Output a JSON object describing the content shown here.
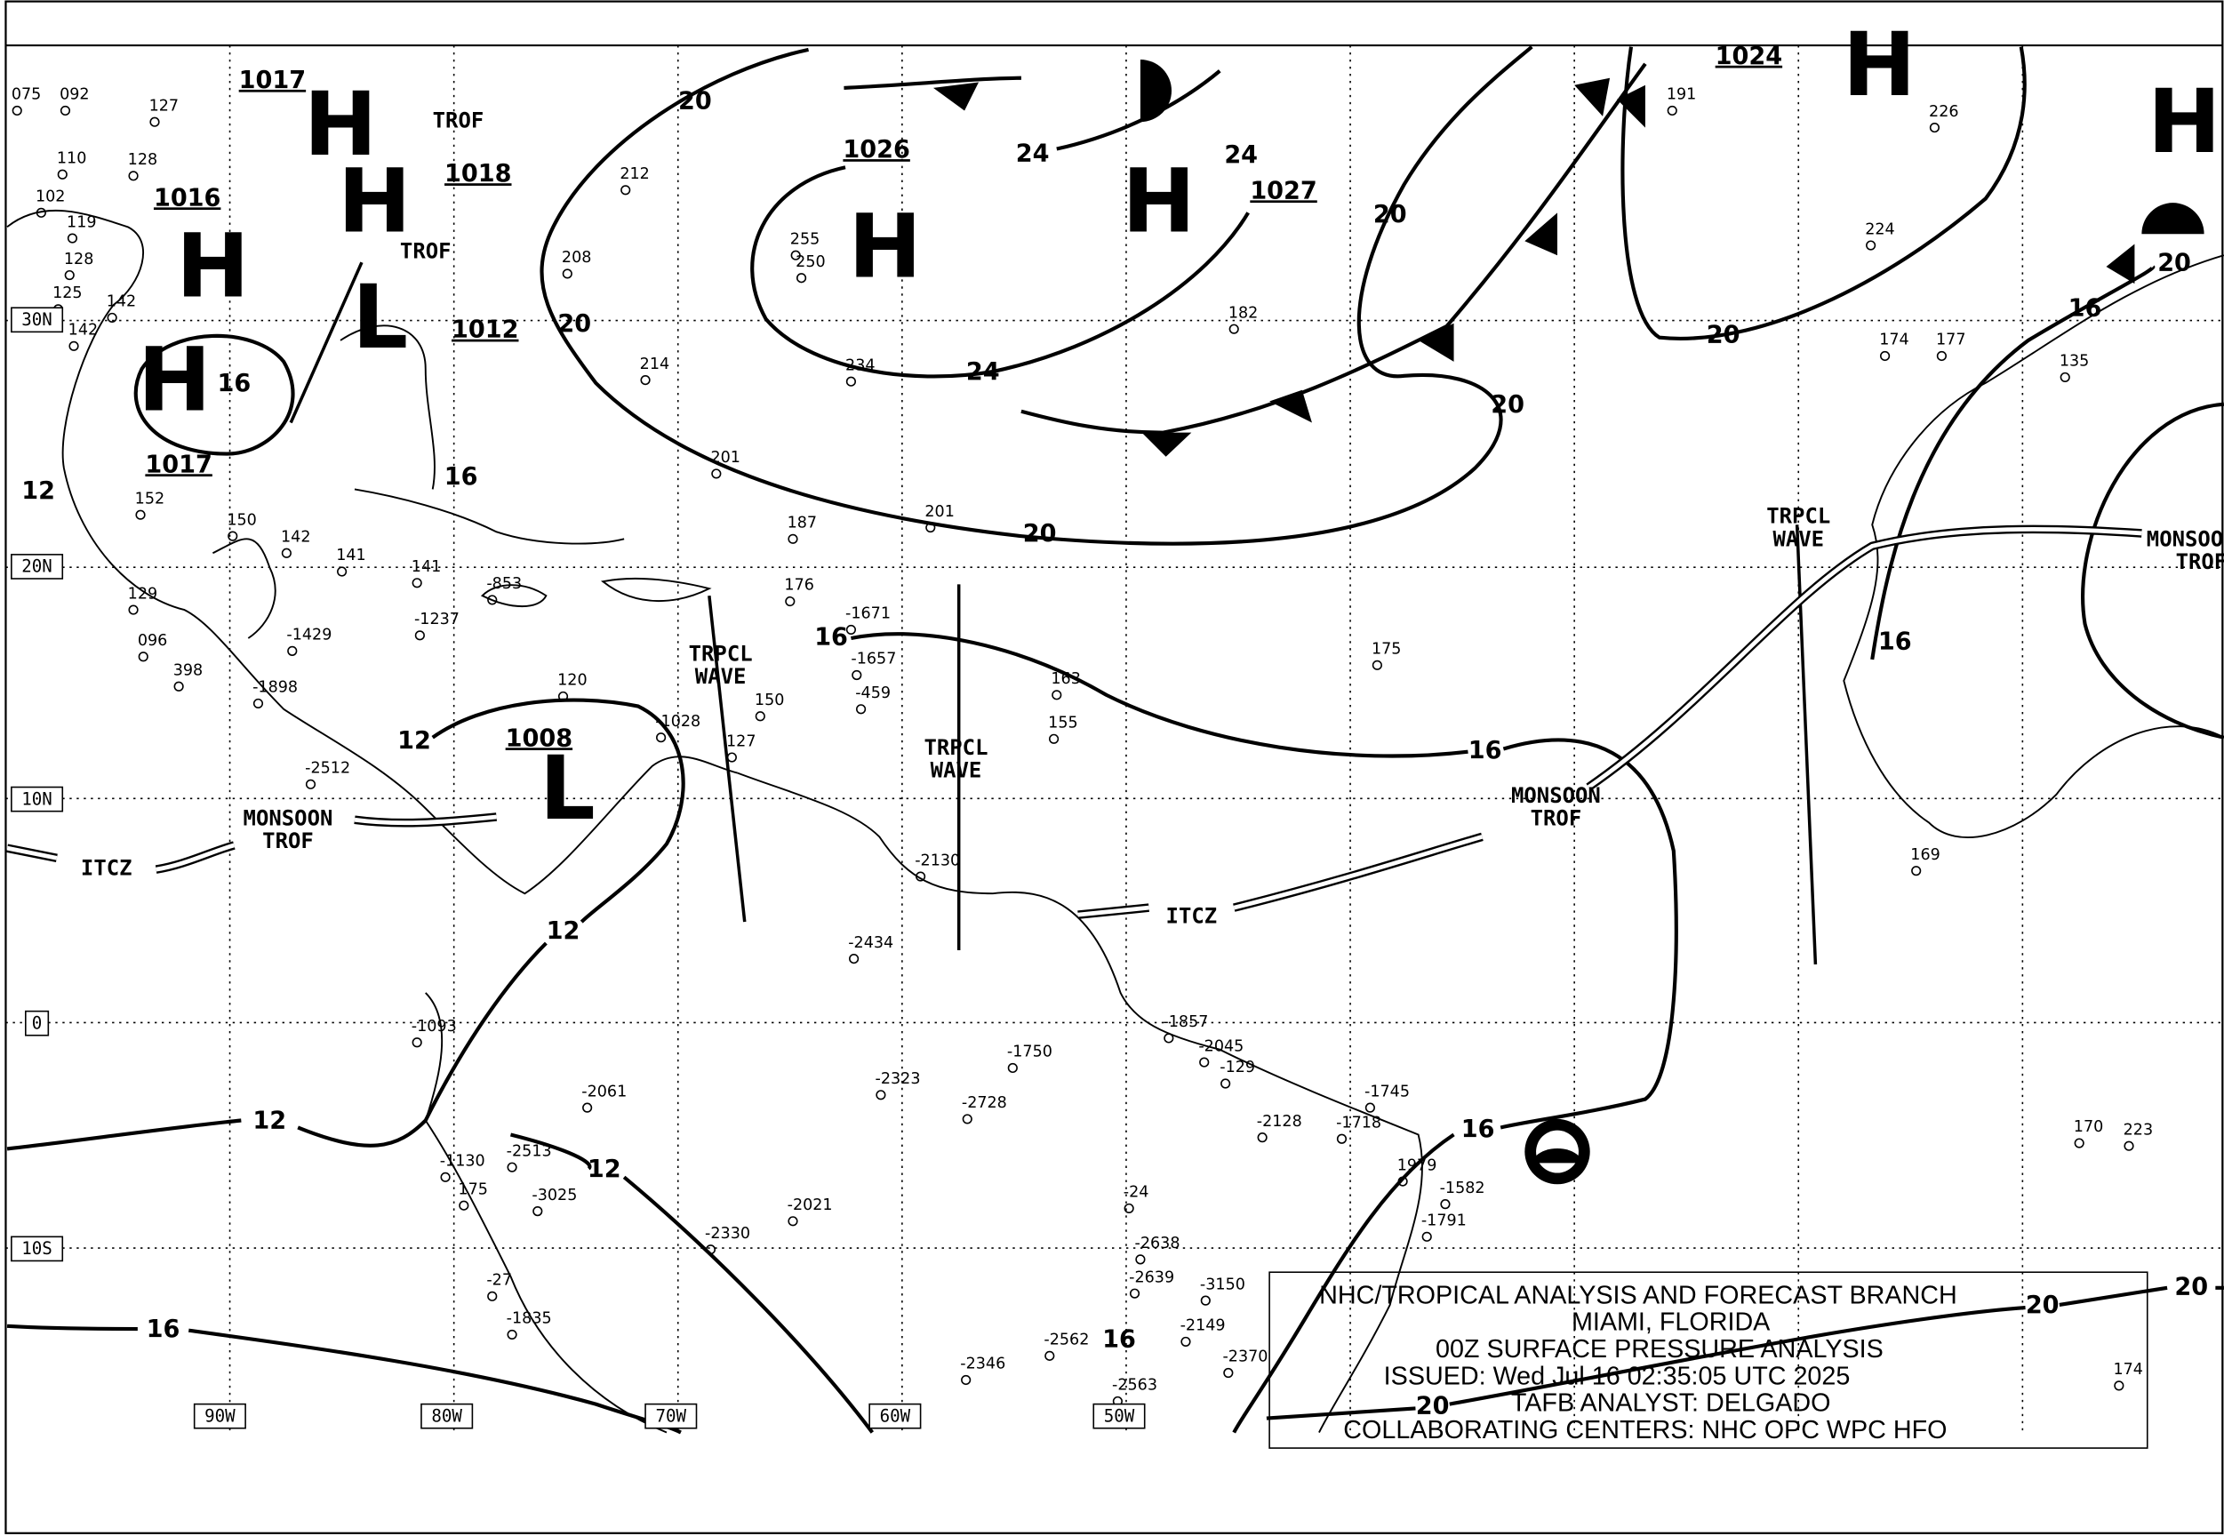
{
  "info_box": {
    "line1": "NHC/TROPICAL ANALYSIS AND FORECAST BRANCH",
    "line2": "MIAMI, FLORIDA",
    "line3": "00Z SURFACE PRESSURE ANALYSIS",
    "line4": "ISSUED: Wed Jul 16 02:35:05 UTC 2025",
    "line5": "TAFB ANALYST: DELGADO",
    "line6": "COLLABORATING CENTERS: NHC OPC WPC HFO"
  },
  "grid_labels": {
    "lat": [
      "30N",
      "20N",
      "10N",
      "0",
      "10S"
    ],
    "lon": [
      "90W",
      "80W",
      "70W",
      "60W",
      "50W"
    ]
  },
  "pressure_centers": [
    {
      "type": "H",
      "pressure": "1017"
    },
    {
      "type": "H",
      "pressure": "1018"
    },
    {
      "type": "H",
      "pressure": "1016"
    },
    {
      "type": "H",
      "pressure": "1017"
    },
    {
      "type": "L",
      "pressure": "1012"
    },
    {
      "type": "H",
      "pressure": "1026"
    },
    {
      "type": "H",
      "pressure": "1027"
    },
    {
      "type": "H",
      "pressure": "1024"
    },
    {
      "type": "L",
      "pressure": "1008"
    },
    {
      "type": "H",
      "pressure": ""
    }
  ],
  "isobar_labels": [
    "20",
    "20",
    "20",
    "20",
    "20",
    "24",
    "24",
    "24",
    "20",
    "20",
    "16",
    "16",
    "16",
    "16",
    "16",
    "16",
    "16",
    "12",
    "12",
    "12",
    "12",
    "12",
    "16",
    "20",
    "20",
    "20",
    "16"
  ],
  "features": {
    "trof": "TROF",
    "trpcl_wave_1": "TRPCL",
    "trpcl_wave_2": "WAVE",
    "monsoon": "MONSOON",
    "monsoon_trof": "TROF",
    "itcz": "ITCZ"
  },
  "stations": [
    "075",
    "092",
    "127",
    "110",
    "128",
    "102",
    "119",
    "128",
    "125",
    "142",
    "142",
    "152",
    "150",
    "141",
    "129",
    "096",
    "398",
    "212",
    "208",
    "214",
    "201",
    "255",
    "250",
    "234",
    "182",
    "187",
    "201",
    "191",
    "226",
    "224",
    "174",
    "177",
    "135",
    "175",
    "163",
    "155",
    "150",
    "120",
    "127",
    "-1028",
    "-2130",
    "-2434",
    "-1750",
    "-2323",
    "-2728",
    "-2128",
    "1979",
    "-1582",
    "-1791",
    "-2638",
    "-2639",
    "-3150",
    "-2346",
    "-2021",
    "-2330",
    "-2061",
    "-1093",
    "-1130",
    "175",
    "170",
    "223",
    "174",
    "169",
    "176",
    "-1671",
    "-1657",
    "-459",
    "-853",
    "141",
    "142",
    "-1237",
    "-1429",
    "-1898",
    "-2512",
    "-2513",
    "-3025",
    "-1835",
    "-27",
    "-24",
    "-2149",
    "-1745",
    "-1718",
    "-1857",
    "-2045",
    "-129",
    "-2562",
    "-2563",
    "-2370"
  ],
  "colors": {
    "ink": "#000000",
    "background": "#ffffff"
  }
}
